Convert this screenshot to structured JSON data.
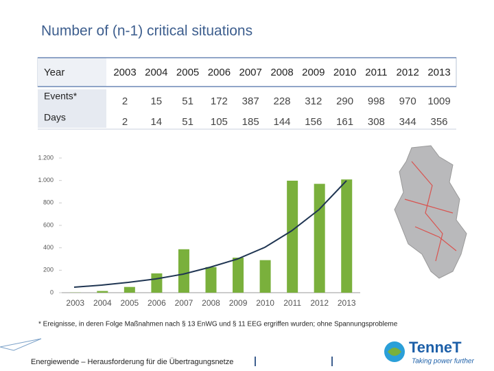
{
  "title": "Number of (n-1) critical situations",
  "table": {
    "header": [
      "Year",
      "2003",
      "2004",
      "2005",
      "2006",
      "2007",
      "2008",
      "2009",
      "2010",
      "2011",
      "2012",
      "2013"
    ],
    "rows": [
      [
        "Events*",
        "2",
        "15",
        "51",
        "172",
        "387",
        "228",
        "312",
        "290",
        "998",
        "970",
        "1009"
      ],
      [
        "Days",
        "2",
        "14",
        "51",
        "105",
        "185",
        "144",
        "156",
        "161",
        "308",
        "344",
        "356"
      ]
    ]
  },
  "chart_data": {
    "type": "bar",
    "categories": [
      "2003",
      "2004",
      "2005",
      "2006",
      "2007",
      "2008",
      "2009",
      "2010",
      "2011",
      "2012",
      "2013"
    ],
    "values": [
      2,
      15,
      51,
      172,
      387,
      228,
      312,
      290,
      998,
      970,
      1009
    ],
    "color": "#7ab03c",
    "ylim": [
      0,
      1200
    ],
    "yticks": [
      0,
      200,
      400,
      600,
      800,
      {
        "value": 1000,
        "label": "1.000"
      },
      {
        "value": 1200,
        "label": "1.200"
      }
    ],
    "grid": false
  },
  "footnote": "* Ereignisse, in deren Folge Maßnahmen nach § 13 EnWG und § 11 EEG ergriffen wurden; ohne Spannungsprobleme",
  "footer": "Energiewende – Herausforderung für die Übertragungsnetze",
  "logo": {
    "name": "TenneT",
    "tagline": "Taking power further"
  }
}
